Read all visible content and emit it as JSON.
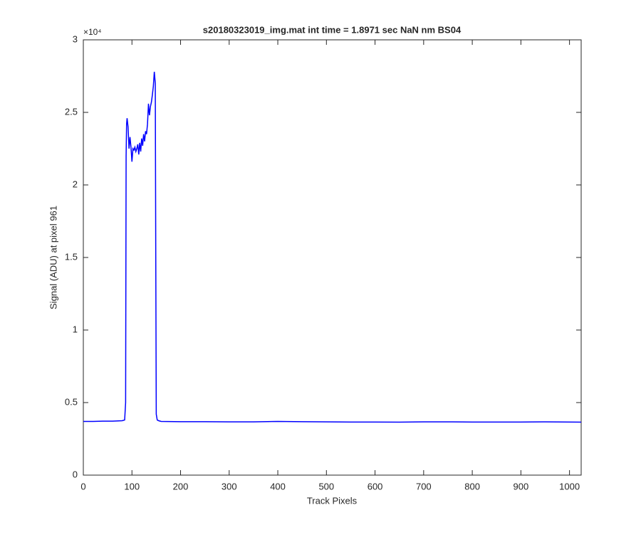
{
  "chart_data": {
    "type": "line",
    "title": "s20180323019_img.mat int time = 1.8971 sec  NaN nm BS04",
    "x_label": "Track Pixels",
    "y_label": "Signal (ADU) at pixel 961",
    "y_scale_label": "×10⁴",
    "xlim": [
      0,
      1024
    ],
    "ylim": [
      0,
      30000
    ],
    "xticks": [
      0,
      100,
      200,
      300,
      400,
      500,
      600,
      700,
      800,
      900,
      1000
    ],
    "yticks": [
      0,
      {
        "value": 5000,
        "label": "0.5"
      },
      {
        "value": 10000,
        "label": "1"
      },
      {
        "value": 15000,
        "label": "1.5"
      },
      {
        "value": 20000,
        "label": "2"
      },
      {
        "value": 25000,
        "label": "2.5"
      },
      {
        "value": 30000,
        "label": "3"
      }
    ],
    "grid": false,
    "series": [
      {
        "color": "#0000ff",
        "x": [
          0,
          20,
          40,
          60,
          80,
          85,
          87,
          88,
          89,
          90,
          92,
          94,
          96,
          98,
          100,
          102,
          104,
          106,
          108,
          110,
          112,
          114,
          116,
          118,
          120,
          122,
          124,
          126,
          128,
          130,
          132,
          134,
          136,
          138,
          140,
          142,
          144,
          146,
          148,
          149,
          150,
          152,
          155,
          160,
          200,
          250,
          300,
          350,
          400,
          450,
          500,
          550,
          600,
          650,
          700,
          750,
          800,
          850,
          900,
          950,
          1000,
          1024
        ],
        "values": [
          3700,
          3700,
          3720,
          3720,
          3750,
          3800,
          5000,
          22000,
          24200,
          24600,
          24000,
          22500,
          23300,
          22600,
          21600,
          22500,
          22400,
          22600,
          22300,
          22500,
          22800,
          22100,
          22900,
          22300,
          23200,
          22700,
          23500,
          23000,
          23700,
          23500,
          24200,
          25600,
          24800,
          25400,
          25700,
          26200,
          26800,
          27800,
          27000,
          15000,
          4200,
          3800,
          3750,
          3700,
          3680,
          3680,
          3670,
          3670,
          3700,
          3680,
          3670,
          3660,
          3660,
          3650,
          3670,
          3670,
          3660,
          3660,
          3660,
          3670,
          3660,
          3650
        ]
      }
    ]
  }
}
